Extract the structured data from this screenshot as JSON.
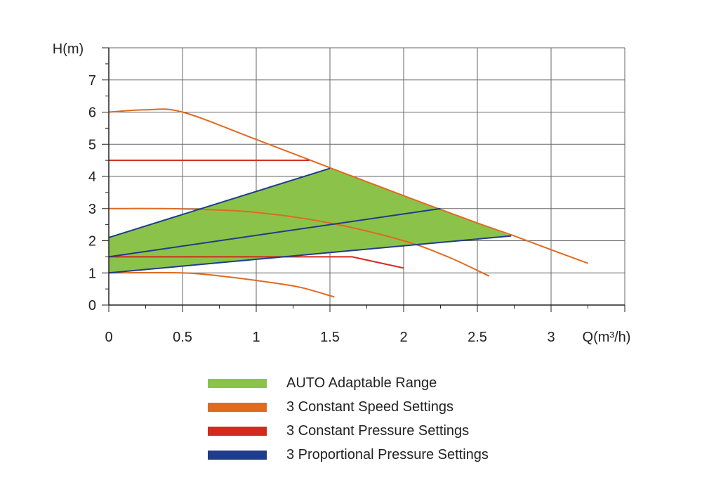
{
  "chart_data": {
    "type": "line",
    "xlabel": "Q(m³/h)",
    "ylabel": "H(m)",
    "xlim": [
      0,
      3.5
    ],
    "ylim": [
      0,
      8
    ],
    "x_ticks": [
      0,
      0.5,
      1,
      1.5,
      2,
      2.5,
      3
    ],
    "x_tick_labels": [
      "0",
      "0.5",
      "1",
      "1.5",
      "2",
      "2.5",
      "3"
    ],
    "y_ticks": [
      0,
      1,
      2,
      3,
      4,
      5,
      6,
      7
    ],
    "y_tick_labels": [
      "0",
      "1",
      "2",
      "3",
      "4",
      "5",
      "6",
      "7"
    ],
    "grid": true,
    "legend_placement": "bottom",
    "auto_range_polygon": {
      "name": "AUTO Adaptable Range",
      "color": "#8bc34a",
      "points": [
        [
          0,
          1.0
        ],
        [
          0,
          2.1
        ],
        [
          1.5,
          4.25
        ],
        [
          2.73,
          2.15
        ]
      ]
    },
    "series": [
      {
        "name": "3 Constant Speed Settings",
        "group": "constant_speed",
        "color": "#e06a1f",
        "curve": true,
        "points": [
          [
            0,
            6.0
          ],
          [
            0.25,
            6.07
          ],
          [
            0.5,
            6.0
          ],
          [
            1.0,
            5.15
          ],
          [
            1.5,
            4.27
          ],
          [
            2.0,
            3.4
          ],
          [
            2.5,
            2.55
          ],
          [
            2.75,
            2.15
          ],
          [
            3.0,
            1.72
          ],
          [
            3.25,
            1.3
          ]
        ]
      },
      {
        "name": "",
        "group": "constant_speed",
        "color": "#e06a1f",
        "curve": true,
        "points": [
          [
            0,
            3.0
          ],
          [
            0.5,
            2.99
          ],
          [
            1.0,
            2.88
          ],
          [
            1.5,
            2.55
          ],
          [
            2.0,
            2.0
          ],
          [
            2.3,
            1.5
          ],
          [
            2.58,
            0.9
          ]
        ]
      },
      {
        "name": "",
        "group": "constant_speed",
        "color": "#e06a1f",
        "curve": true,
        "points": [
          [
            0,
            1.0
          ],
          [
            0.5,
            1.0
          ],
          [
            0.8,
            0.88
          ],
          [
            1.1,
            0.7
          ],
          [
            1.3,
            0.55
          ],
          [
            1.53,
            0.25
          ]
        ]
      },
      {
        "name": "3 Constant Pressure Settings",
        "group": "constant_pressure",
        "color": "#d42a1e",
        "curve": false,
        "points": [
          [
            0,
            4.5
          ],
          [
            1.36,
            4.5
          ]
        ]
      },
      {
        "name": "",
        "group": "constant_pressure",
        "color": "#d42a1e",
        "curve": false,
        "points": [
          [
            0,
            1.5
          ],
          [
            1.65,
            1.5
          ],
          [
            2.0,
            1.15
          ]
        ]
      },
      {
        "name": "3 Proportional Pressure Settings",
        "group": "proportional_pressure",
        "color": "#1f3c8c",
        "curve": false,
        "points": [
          [
            0,
            2.1
          ],
          [
            1.5,
            4.25
          ]
        ]
      },
      {
        "name": "",
        "group": "proportional_pressure",
        "color": "#1f3c8c",
        "curve": false,
        "points": [
          [
            0,
            1.5
          ],
          [
            2.25,
            3.0
          ]
        ]
      },
      {
        "name": "",
        "group": "proportional_pressure",
        "color": "#1f3c8c",
        "curve": false,
        "points": [
          [
            0,
            1.0
          ],
          [
            2.73,
            2.15
          ]
        ]
      }
    ]
  },
  "legend": [
    {
      "label": "AUTO Adaptable Range",
      "color": "#8bc34a"
    },
    {
      "label": "3 Constant Speed Settings",
      "color": "#e06a1f"
    },
    {
      "label": "3 Constant Pressure Settings",
      "color": "#d42a1e"
    },
    {
      "label": "3 Proportional Pressure Settings",
      "color": "#1f3c8c"
    }
  ]
}
